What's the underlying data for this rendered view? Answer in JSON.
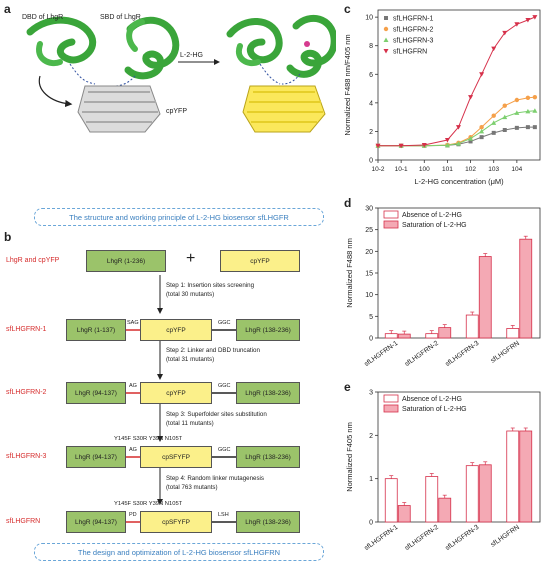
{
  "panel_a": {
    "label": "a",
    "dbd_label": "DBD of LhgR",
    "sbd_label": "SBD of LhgR",
    "cpyfp_label": "cpYFP",
    "arrow_label": "L-2-HG",
    "caption": "The structure and working principle of L-2-HG biosensor sfLHGFR"
  },
  "panel_b": {
    "label": "b",
    "row0": {
      "name": "LhgR and cpYFP",
      "box1": "LhgR (1-236)",
      "plus": "+",
      "box2": "cpYFP"
    },
    "step1": {
      "line1": "Step 1: Insertion sites screening",
      "line2": "(total 30 mutants)"
    },
    "row1": {
      "name": "sfLHGFRN-1",
      "left_linker": "SAG",
      "right_linker": "GGC",
      "box1": "LhgR (1-137)",
      "box2": "cpYFP",
      "box3": "LhgR (138-236)"
    },
    "step2": {
      "line1": "Step 2: Linker and DBD truncation",
      "line2": "(total 31 mutants)"
    },
    "row2": {
      "name": "sfLHGFRN-2",
      "left_linker": "AG",
      "right_linker": "GGC",
      "box1": "LhgR (94-137)",
      "box2": "cpYFP",
      "box3": "LhgR (138-236)"
    },
    "step3": {
      "line1": "Step 3: Superfolder sites substitution",
      "line2": "(total 11 mutants)"
    },
    "row3": {
      "name": "sfLHGFRN-3",
      "mutations": "Y145F S30R Y39N N105T",
      "left_linker": "AG",
      "right_linker": "GGC",
      "box1": "LhgR (94-137)",
      "box2": "cpSFYFP",
      "box3": "LhgR (138-236)"
    },
    "step4": {
      "line1": "Step 4: Random linker mutagenesis",
      "line2": "(total 763 mutants)"
    },
    "row4": {
      "name": "sfLHGFRN",
      "mutations": "Y145F S30R Y39N N105T",
      "left_linker": "PD",
      "right_linker": "LSH",
      "box1": "LhgR (94-137)",
      "box2": "cpSFYFP",
      "box3": "LhgR (138-236)"
    },
    "caption": "The design and optimization of L-2-HG biosensor sfLHGFRN"
  },
  "panel_c": {
    "label": "c",
    "chart_data": {
      "type": "scatter",
      "xlabel": "L-2-HG concentration (μM)",
      "ylabel": "Normalized F488 nm/F405 nm",
      "xscale": "log",
      "xlim": [
        0.01,
        100000
      ],
      "ylim": [
        0,
        10.5
      ],
      "x_ticks": [
        "10-2",
        "10-1",
        "100",
        "101",
        "102",
        "103",
        "104"
      ],
      "y_ticks": [
        "0",
        "2",
        "4",
        "6",
        "8",
        "10"
      ],
      "legend": "top-left",
      "x": [
        0.01,
        0.1,
        1,
        10,
        30,
        100,
        300,
        1000,
        3000,
        10000,
        30000,
        60000
      ],
      "series": [
        {
          "name": "sfLHGFRN-1",
          "color": "#777777",
          "marker": "square",
          "values": [
            1.0,
            1.0,
            1.0,
            1.02,
            1.1,
            1.3,
            1.6,
            1.9,
            2.1,
            2.25,
            2.3,
            2.3
          ]
        },
        {
          "name": "sfLHGFRN-2",
          "color": "#f5a04a",
          "marker": "circle",
          "values": [
            1.0,
            1.0,
            1.0,
            1.05,
            1.2,
            1.6,
            2.3,
            3.1,
            3.8,
            4.2,
            4.35,
            4.4
          ]
        },
        {
          "name": "sfLHGFRN-3",
          "color": "#7dcf6f",
          "marker": "triangle",
          "values": [
            1.0,
            1.0,
            1.0,
            1.03,
            1.15,
            1.5,
            2.0,
            2.6,
            3.0,
            3.3,
            3.4,
            3.45
          ]
        },
        {
          "name": "sfLHGFRN",
          "color": "#d6304a",
          "marker": "triangle-down",
          "values": [
            1.0,
            1.0,
            1.05,
            1.4,
            2.3,
            4.4,
            6.0,
            7.8,
            8.9,
            9.5,
            9.8,
            10.0
          ]
        }
      ]
    }
  },
  "panel_d": {
    "label": "d",
    "chart_data": {
      "type": "bar",
      "ylabel": "Normalized F488 nm",
      "ylim": [
        0,
        30
      ],
      "y_ticks": [
        "0",
        "5",
        "10",
        "15",
        "20",
        "25",
        "30"
      ],
      "categories": [
        "sfLHGFRN-1",
        "sfLHGFRN-2",
        "sfLHGFRN-3",
        "sfLHGFRN"
      ],
      "legend": "top-left",
      "series": [
        {
          "name": "Absence of L-2-HG",
          "style": "open",
          "values": [
            1.0,
            1.0,
            5.3,
            2.2
          ]
        },
        {
          "name": "Saturation of L-2-HG",
          "style": "filled",
          "values": [
            0.9,
            2.4,
            18.8,
            22.8
          ]
        }
      ]
    }
  },
  "panel_e": {
    "label": "e",
    "chart_data": {
      "type": "bar",
      "ylabel": "Normalized F405 nm",
      "ylim": [
        0,
        3
      ],
      "y_ticks": [
        "0",
        "1",
        "2",
        "3"
      ],
      "categories": [
        "sfLHGFRN-1",
        "sfLHGFRN-2",
        "sfLHGFRN-3",
        "sfLHGFRN"
      ],
      "legend": "top-left",
      "series": [
        {
          "name": "Absence of L-2-HG",
          "style": "open",
          "values": [
            1.0,
            1.05,
            1.3,
            2.1
          ]
        },
        {
          "name": "Saturation of L-2-HG",
          "style": "filled",
          "values": [
            0.38,
            0.55,
            1.32,
            2.1
          ]
        }
      ]
    }
  },
  "colors": {
    "red": "#d62c2c",
    "pink": "#f4a9b4",
    "green": "#9bc36a",
    "yellow": "#fbf08a",
    "blue": "#3a7fbf"
  }
}
